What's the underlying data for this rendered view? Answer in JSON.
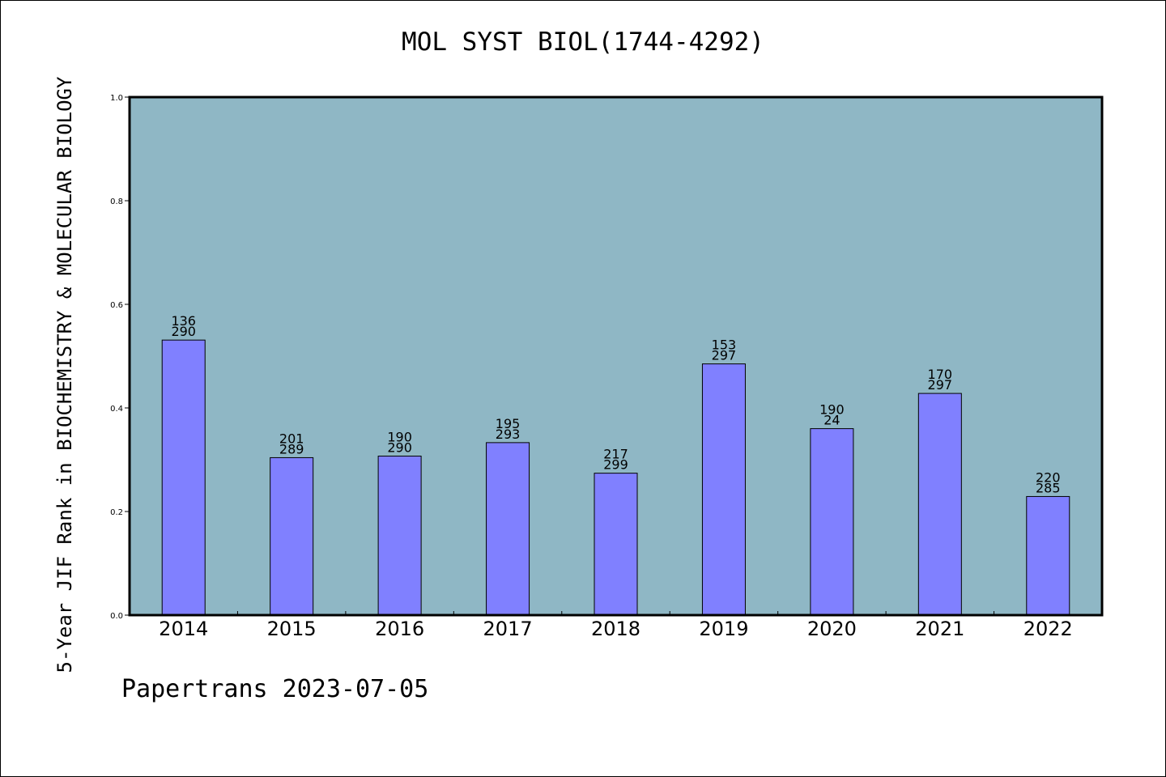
{
  "chart_data": {
    "type": "bar",
    "title": "MOL SYST BIOL(1744-4292)",
    "ylabel": "5-Year JIF Rank in BIOCHEMISTRY & MOLECULAR BIOLOGY",
    "xlabel": "",
    "ylim": [
      0.0,
      1.0
    ],
    "yticks": [
      "0.0",
      "0.2",
      "0.4",
      "0.6",
      "0.8",
      "1.0"
    ],
    "categories": [
      "2014",
      "2015",
      "2016",
      "2017",
      "2018",
      "2019",
      "2020",
      "2021",
      "2022"
    ],
    "values": [
      0.531,
      0.304,
      0.307,
      0.333,
      0.274,
      0.485,
      0.36,
      0.428,
      0.229
    ],
    "labels_top": [
      "136",
      "201",
      "190",
      "195",
      "217",
      "153",
      "190",
      "170",
      "220"
    ],
    "labels_bottom": [
      "290",
      "289",
      "290",
      "293",
      "299",
      "297",
      "24",
      "297",
      "285"
    ],
    "grid": false,
    "colors": {
      "plot_background": "#8fb7c5",
      "bar_fill": "#8080ff",
      "bar_stroke": "#000000"
    }
  },
  "footer": "Papertrans 2023-07-05"
}
